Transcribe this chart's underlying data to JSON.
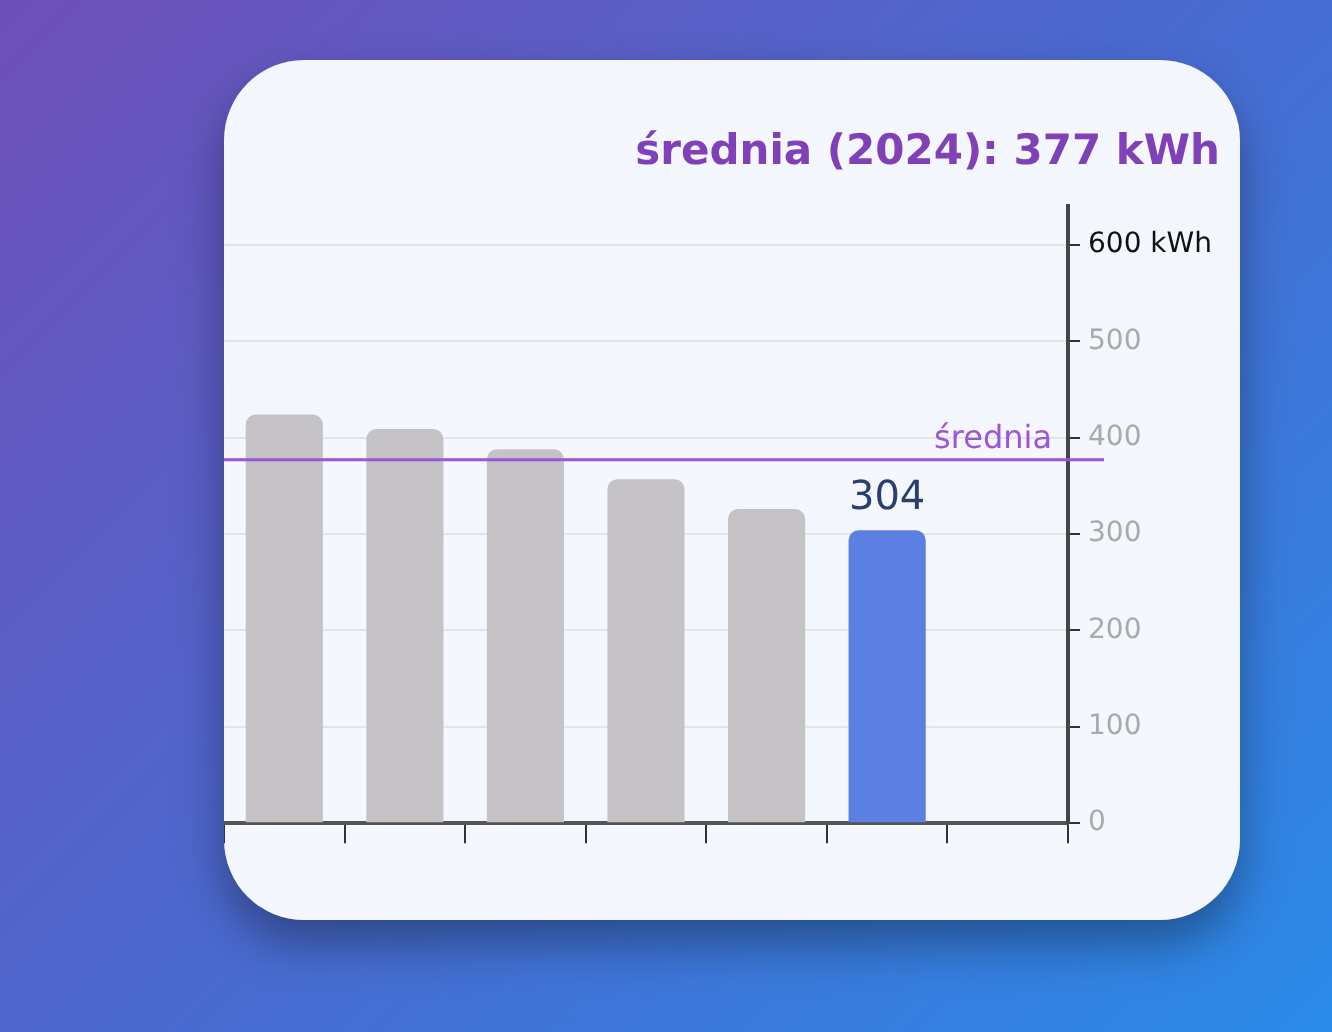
{
  "chart_data": {
    "type": "bar",
    "title": "średnia (2024): 377 kWh",
    "categories": [
      null,
      null,
      null,
      null,
      null,
      null,
      null
    ],
    "values": [
      424,
      409,
      388,
      357,
      326,
      304,
      null
    ],
    "colors": [
      "#c5c3c6",
      "#c5c3c6",
      "#c5c3c6",
      "#c5c3c6",
      "#c5c3c6",
      "#5b7fe2",
      "#c5c3c6"
    ],
    "value_labels": [
      null,
      null,
      null,
      null,
      null,
      "304",
      null
    ],
    "ylim": [
      0,
      640
    ],
    "yticks": [
      0,
      100,
      200,
      300,
      400,
      500,
      {
        "value": 600,
        "label": "600 kWh"
      }
    ],
    "ref_lines": [
      {
        "axis": "y",
        "value": 377,
        "label": "średnia",
        "color": "#9b55d6"
      }
    ],
    "grid": "y"
  }
}
